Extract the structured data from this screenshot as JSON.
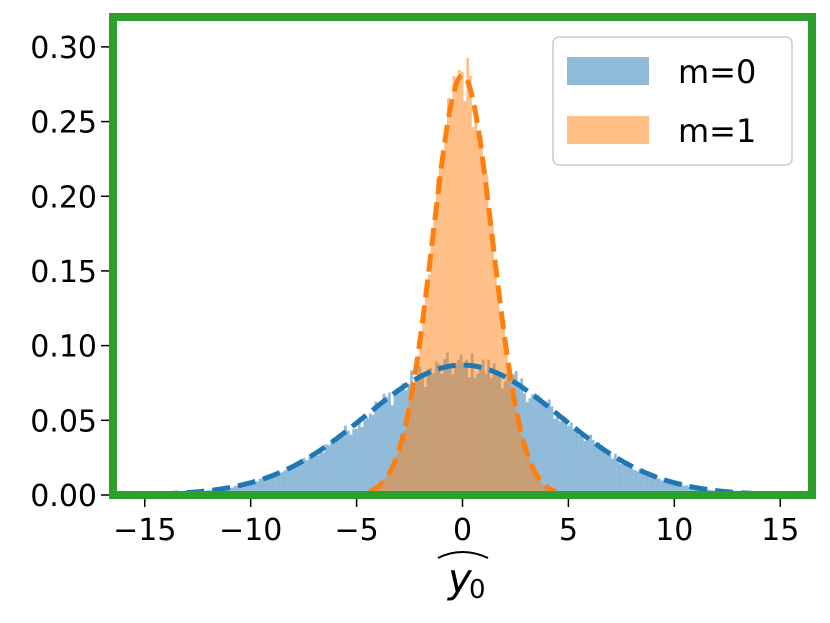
{
  "chart_data": {
    "type": "histogram",
    "title": "",
    "xlabel": "ŷ₀",
    "xlabel_base": "y",
    "xlabel_sub": "0",
    "ylabel": "",
    "xlim": [
      -16.5,
      16.5
    ],
    "ylim": [
      0,
      0.32
    ],
    "xticks": [
      -15,
      -10,
      -5,
      0,
      5,
      10,
      15
    ],
    "xtick_labels": [
      "−15",
      "−10",
      "−5",
      "0",
      "5",
      "10",
      "15"
    ],
    "yticks": [
      0.0,
      0.05,
      0.1,
      0.15,
      0.2,
      0.25,
      0.3
    ],
    "ytick_labels": [
      "0.00",
      "0.05",
      "0.10",
      "0.15",
      "0.20",
      "0.25",
      "0.30"
    ],
    "grid": false,
    "legend_position": "top-right",
    "frame_color": "#2ca02c",
    "series": [
      {
        "name": "m=0",
        "color": "#1f77b4",
        "mean": 0.0,
        "std": 4.6,
        "peak_density": 0.087,
        "x_range": [
          -13,
          13
        ]
      },
      {
        "name": "m=1",
        "color": "#ff7f0e",
        "mean": 0.0,
        "std": 1.42,
        "peak_density": 0.281,
        "x_range": [
          -4.5,
          4.5
        ]
      }
    ]
  }
}
